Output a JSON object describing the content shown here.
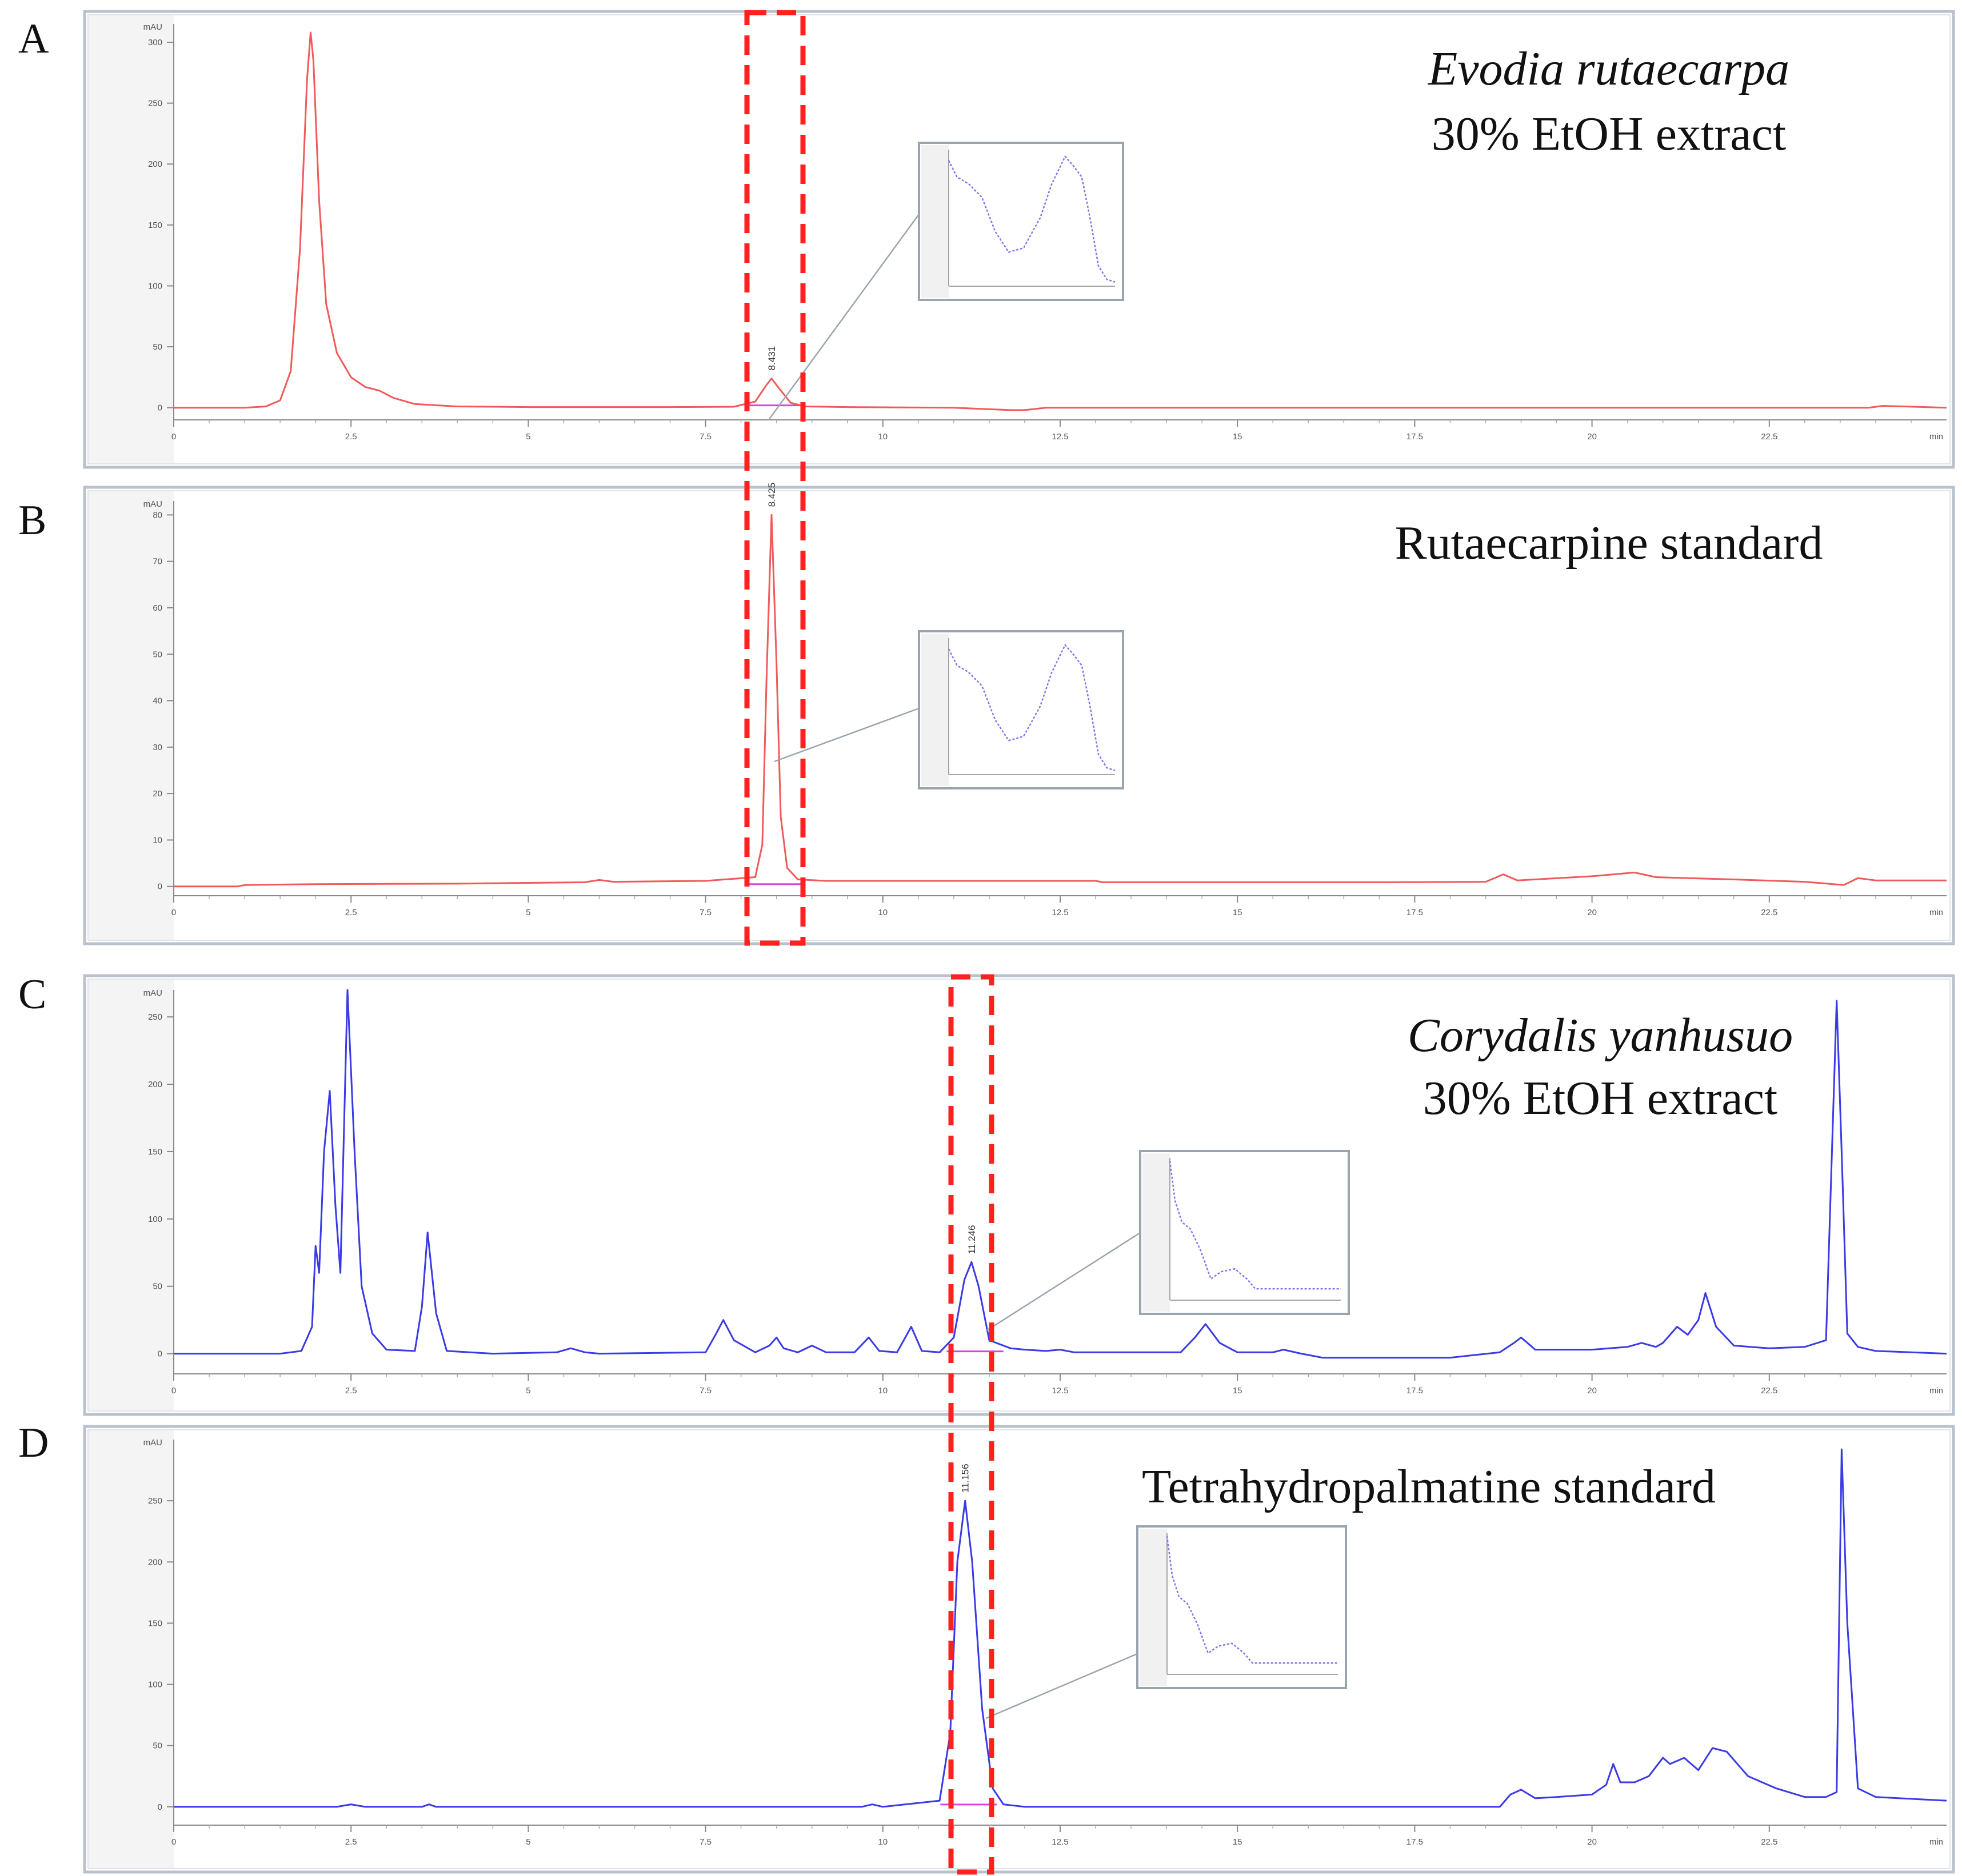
{
  "chart_data": [
    {
      "type": "line",
      "panel_label": "A",
      "title_lines": [
        {
          "text": "Evodia rutaecarpa",
          "italic": true
        },
        {
          "text": "30% EtOH extract",
          "italic": false
        }
      ],
      "ylabel": "mAU",
      "xlabel": "min",
      "xlim": [
        0,
        25
      ],
      "ylim": [
        -10,
        315
      ],
      "xticks": [
        "0",
        "2.5",
        "5",
        "7.5",
        "10",
        "12.5",
        "15",
        "17.5",
        "20",
        "22.5"
      ],
      "yticks": [
        "0",
        "50",
        "100",
        "150",
        "200",
        "250",
        "300"
      ],
      "peak_label": "8.431",
      "peak_label_x": 8.43,
      "color": "#f05a5a",
      "series": [
        {
          "x": [
            0,
            1.0,
            1.3,
            1.5,
            1.65,
            1.78,
            1.88,
            1.93,
            1.97,
            2.05,
            2.15,
            2.3,
            2.5,
            2.7,
            2.9,
            3.1,
            3.4,
            4.0,
            5.0,
            6.0,
            7.0,
            7.9,
            8.2,
            8.35,
            8.43,
            8.52,
            8.7,
            8.9,
            9.5,
            11.0,
            11.8,
            12.0,
            12.3,
            14.0,
            16.0,
            18.0,
            20.0,
            22.0,
            23.9,
            24.1,
            24.4,
            25.0
          ],
          "y": [
            0,
            0,
            1,
            6,
            30,
            130,
            270,
            308,
            285,
            170,
            85,
            45,
            25,
            17,
            14,
            8,
            3,
            1,
            0.5,
            0.5,
            0.5,
            0.8,
            5,
            18,
            24,
            17,
            4,
            1,
            0.5,
            0,
            -2,
            -2,
            0,
            0,
            0,
            0,
            0,
            0,
            0,
            1.5,
            1,
            0
          ]
        }
      ]
    },
    {
      "type": "line",
      "panel_label": "B",
      "title_lines": [
        {
          "text": "Rutaecarpine standard",
          "italic": false
        }
      ],
      "ylabel": "mAU",
      "xlabel": "min",
      "xlim": [
        0,
        25
      ],
      "ylim": [
        -2,
        83
      ],
      "xticks": [
        "0",
        "2.5",
        "5",
        "7.5",
        "10",
        "12.5",
        "15",
        "17.5",
        "20",
        "22.5"
      ],
      "yticks": [
        "0",
        "10",
        "20",
        "30",
        "40",
        "50",
        "60",
        "70",
        "80"
      ],
      "peak_label": "8.425",
      "peak_label_x": 8.43,
      "color": "#f05a5a",
      "series": [
        {
          "x": [
            0,
            0.9,
            1.0,
            2.0,
            4.0,
            5.8,
            6.0,
            6.2,
            7.5,
            8.2,
            8.3,
            8.36,
            8.43,
            8.5,
            8.56,
            8.65,
            8.8,
            9.2,
            11.0,
            13.0,
            13.1,
            15.0,
            17.0,
            18.5,
            18.75,
            18.95,
            20.0,
            20.6,
            20.9,
            22.0,
            23.0,
            23.55,
            23.75,
            24.0,
            25.0
          ],
          "y": [
            0,
            0,
            0.3,
            0.5,
            0.6,
            0.9,
            1.4,
            1,
            1.2,
            2,
            9,
            45,
            80,
            48,
            15,
            4,
            1.5,
            1.2,
            1.2,
            1.2,
            0.9,
            0.9,
            0.9,
            1.0,
            2.6,
            1.3,
            2.2,
            3.0,
            2.0,
            1.5,
            1.0,
            0.3,
            1.8,
            1.3,
            1.3
          ]
        }
      ]
    },
    {
      "type": "line",
      "panel_label": "C",
      "title_lines": [
        {
          "text": "Corydalis yanhusuo",
          "italic": true
        },
        {
          "text": "30% EtOH extract",
          "italic": false
        }
      ],
      "ylabel": "mAU",
      "xlabel": "min",
      "xlim": [
        0,
        25
      ],
      "ylim": [
        -15,
        270
      ],
      "xticks": [
        "0",
        "2.5",
        "5",
        "7.5",
        "10",
        "12.5",
        "15",
        "17.5",
        "20",
        "22.5"
      ],
      "yticks": [
        "0",
        "50",
        "100",
        "150",
        "200",
        "250"
      ],
      "peak_label": "11.246",
      "peak_label_x": 11.25,
      "color": "#3a3ae6",
      "series": [
        {
          "x": [
            0,
            1.5,
            1.8,
            1.95,
            2.0,
            2.05,
            2.12,
            2.2,
            2.28,
            2.35,
            2.45,
            2.55,
            2.65,
            2.8,
            3.0,
            3.4,
            3.5,
            3.58,
            3.7,
            3.85,
            4.5,
            5.4,
            5.6,
            5.8,
            6.0,
            7.5,
            7.65,
            7.75,
            7.9,
            8.2,
            8.4,
            8.5,
            8.6,
            8.8,
            9.0,
            9.2,
            9.6,
            9.8,
            9.95,
            10.2,
            10.4,
            10.55,
            10.8,
            11.0,
            11.15,
            11.25,
            11.35,
            11.5,
            11.8,
            12.0,
            12.3,
            12.5,
            12.7,
            13.5,
            14.2,
            14.4,
            14.55,
            14.75,
            15.0,
            15.5,
            15.65,
            15.9,
            16.2,
            18.0,
            18.7,
            18.9,
            19.0,
            19.2,
            19.6,
            20.0,
            20.5,
            20.7,
            20.9,
            21.0,
            21.2,
            21.35,
            21.5,
            21.6,
            21.75,
            22.0,
            22.5,
            23.0,
            23.3,
            23.45,
            23.52,
            23.6,
            23.75,
            24.0,
            25.0
          ],
          "y": [
            0,
            0,
            2,
            20,
            80,
            60,
            150,
            195,
            110,
            60,
            270,
            150,
            50,
            15,
            3,
            2,
            35,
            90,
            30,
            2,
            0,
            1,
            4,
            1,
            0,
            1,
            15,
            25,
            10,
            1,
            6,
            12,
            4,
            1,
            6,
            1,
            1,
            12,
            2,
            1,
            20,
            2,
            1,
            12,
            55,
            68,
            50,
            10,
            4,
            3,
            2,
            3,
            1,
            1,
            1,
            12,
            22,
            8,
            1,
            1,
            3,
            0,
            -3,
            -3,
            1,
            8,
            12,
            3,
            3,
            3,
            5,
            8,
            5,
            8,
            20,
            14,
            25,
            45,
            20,
            6,
            4,
            5,
            10,
            262,
            150,
            15,
            5,
            2,
            0
          ]
        }
      ]
    },
    {
      "type": "line",
      "panel_label": "D",
      "title_lines": [
        {
          "text": "Tetrahydropalmatine standard",
          "italic": false
        }
      ],
      "ylabel": "mAU",
      "xlabel": "min",
      "xlim": [
        0,
        25
      ],
      "ylim": [
        -15,
        300
      ],
      "xticks": [
        "0",
        "2.5",
        "5",
        "7.5",
        "10",
        "12.5",
        "15",
        "17.5",
        "20",
        "22.5"
      ],
      "yticks": [
        "0",
        "50",
        "100",
        "150",
        "200",
        "250"
      ],
      "peak_label": "11.156",
      "peak_label_x": 11.16,
      "color": "#3a3ae6",
      "series": [
        {
          "x": [
            0,
            2.3,
            2.5,
            2.7,
            3.5,
            3.6,
            3.7,
            9.7,
            9.85,
            10.0,
            10.8,
            10.95,
            11.05,
            11.16,
            11.26,
            11.4,
            11.55,
            11.7,
            12.0,
            14.0,
            16.0,
            18.7,
            18.85,
            19.0,
            19.2,
            19.5,
            20.0,
            20.2,
            20.3,
            20.4,
            20.6,
            20.8,
            21.0,
            21.1,
            21.3,
            21.5,
            21.7,
            21.9,
            22.2,
            22.6,
            23.0,
            23.3,
            23.45,
            23.52,
            23.6,
            23.75,
            24.0,
            25.0
          ],
          "y": [
            0,
            0,
            2,
            0,
            0,
            2,
            0,
            0,
            2,
            0,
            5,
            60,
            200,
            250,
            200,
            80,
            15,
            2,
            0,
            0,
            0,
            0,
            10,
            14,
            7,
            8,
            10,
            18,
            35,
            20,
            20,
            25,
            40,
            35,
            40,
            30,
            48,
            45,
            25,
            15,
            8,
            8,
            12,
            292,
            150,
            15,
            8,
            5
          ]
        }
      ]
    }
  ]
}
